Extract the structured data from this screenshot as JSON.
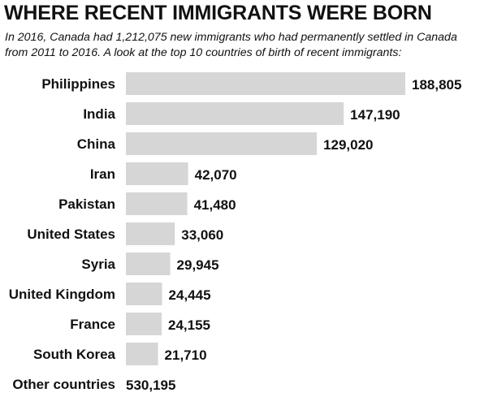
{
  "chart_data": {
    "type": "bar",
    "orientation": "horizontal",
    "title": "WHERE RECENT IMMIGRANTS WERE BORN",
    "subtitle": "In 2016, Canada had 1,212,075 new immigrants who had permanently settled in Canada from 2011 to 2016. A look at the top 10 countries of birth of recent immigrants:",
    "categories": [
      "Philippines",
      "India",
      "China",
      "Iran",
      "Pakistan",
      "United States",
      "Syria",
      "United Kingdom",
      "France",
      "South Korea"
    ],
    "values": [
      188805,
      147190,
      129020,
      42070,
      41480,
      33060,
      29945,
      24445,
      24155,
      21710
    ],
    "value_labels": [
      "188,805",
      "147,190",
      "129,020",
      "42,070",
      "41,480",
      "33,060",
      "29,945",
      "24,445",
      "24,155",
      "21,710"
    ],
    "xlim": [
      0,
      188805
    ],
    "bar_color": "#d6d6d6",
    "grid": false,
    "legend": "none",
    "footer": {
      "label": "Other countries",
      "value": 530195,
      "value_label": "530,195"
    }
  }
}
